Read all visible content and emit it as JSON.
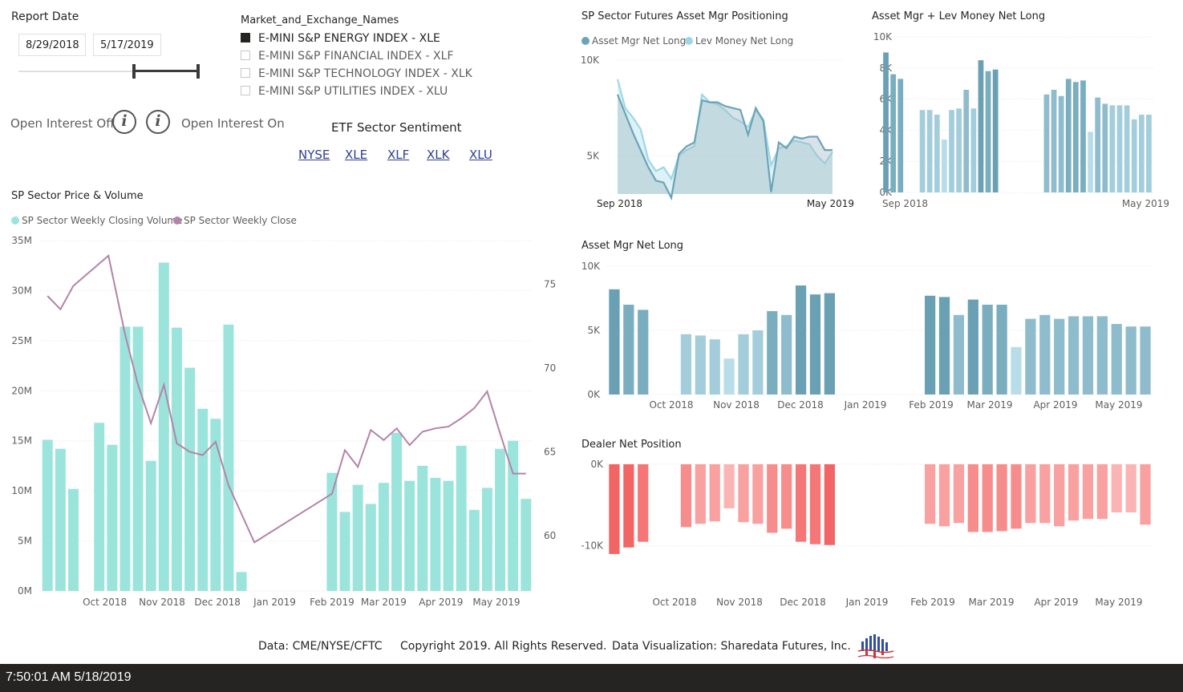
{
  "report_date": {
    "label": "Report Date",
    "start": "8/29/2018",
    "end": "5/17/2019"
  },
  "market_filter": {
    "title": "Market_and_Exchange_Names",
    "items": [
      {
        "label": "E-MINI S&P ENERGY INDEX - XLE",
        "selected": true
      },
      {
        "label": "E-MINI S&P FINANCIAL INDEX - XLF",
        "selected": false
      },
      {
        "label": "E-MINI S&P TECHNOLOGY INDEX - XLK",
        "selected": false
      },
      {
        "label": "E-MINI S&P UTILITIES INDEX - XLU",
        "selected": false
      }
    ]
  },
  "open_interest": {
    "off_label": "Open Interest Off",
    "on_label": "Open Interest On",
    "icon_glyph": "i"
  },
  "etf": {
    "title": "ETF Sector Sentiment",
    "links": [
      "NYSE",
      "XLE",
      "XLF",
      "XLK",
      "XLU"
    ]
  },
  "footer": {
    "source": "Data: CME/NYSE/CFTC",
    "copyright": "Copyright 2019. All Rights Reserved.",
    "credit": "Data Visualization: Sharedata Futures, Inc."
  },
  "status_bar": {
    "timestamp": "7:50:01 AM 5/18/2019"
  },
  "colors": {
    "volume": "#9be4dc",
    "close": "#b383a8",
    "asset_mgr": "#6aa4b8",
    "lev_money": "#9dd7e6",
    "dealer": "#f77a7a"
  },
  "chart_data": [
    {
      "id": "price_volume",
      "type": "bar",
      "title": "SP Sector Price & Volume",
      "legend": [
        "SP Sector Weekly Closing Volume",
        "SP Sector Weekly Close"
      ],
      "x_ticks": [
        "Oct 2018",
        "Nov 2018",
        "Dec 2018",
        "Jan 2019",
        "Feb 2019",
        "Mar 2019",
        "Apr 2019",
        "May 2019"
      ],
      "y_ticks": [
        "0M",
        "5M",
        "10M",
        "15M",
        "20M",
        "25M",
        "30M",
        "35M"
      ],
      "y_right_ticks": [
        "60",
        "65",
        "70",
        "75"
      ],
      "ylim": [
        0,
        35000000
      ],
      "y_right_lim": [
        56.7,
        77.6
      ],
      "series": [
        {
          "name": "SP Sector Weekly Closing Volume",
          "type": "bar",
          "x": [
            "8/31/2018",
            "9/7/2018",
            "9/14/2018",
            "9/28/2018",
            "10/5/2018",
            "10/12/2018",
            "10/19/2018",
            "10/26/2018",
            "11/2/2018",
            "11/9/2018",
            "11/16/2018",
            "11/23/2018",
            "11/30/2018",
            "12/7/2018",
            "12/14/2018",
            "2/1/2019",
            "2/8/2019",
            "2/15/2019",
            "2/22/2019",
            "3/1/2019",
            "3/8/2019",
            "3/15/2019",
            "3/22/2019",
            "3/29/2019",
            "4/5/2019",
            "4/12/2019",
            "4/19/2019",
            "4/26/2019",
            "5/3/2019",
            "5/10/2019",
            "5/17/2019"
          ],
          "values": [
            15100000,
            14200000,
            10200000,
            16800000,
            14600000,
            26400000,
            26400000,
            13000000,
            32800000,
            26300000,
            22300000,
            18200000,
            17200000,
            26600000,
            1900000,
            11800000,
            7900000,
            10600000,
            8700000,
            10800000,
            15800000,
            11000000,
            12500000,
            11300000,
            11000000,
            14500000,
            8100000,
            10300000,
            14200000,
            15000000,
            9200000
          ]
        },
        {
          "name": "SP Sector Weekly Close",
          "type": "line",
          "x": [
            "8/31/2018",
            "9/7/2018",
            "9/14/2018",
            "10/3/2018",
            "10/12/2018",
            "10/19/2018",
            "10/26/2018",
            "11/2/2018",
            "11/9/2018",
            "11/16/2018",
            "11/23/2018",
            "11/30/2018",
            "12/7/2018",
            "12/21/2018",
            "2/1/2019",
            "2/8/2019",
            "2/15/2019",
            "2/22/2019",
            "3/1/2019",
            "3/8/2019",
            "3/15/2019",
            "3/22/2019",
            "3/29/2019",
            "4/5/2019",
            "4/12/2019",
            "4/19/2019",
            "4/26/2019",
            "5/3/2019",
            "5/10/2019",
            "5/17/2019"
          ],
          "values": [
            74.3,
            73.5,
            74.9,
            76.7,
            72.0,
            69.0,
            66.7,
            69.0,
            65.5,
            65.0,
            64.8,
            65.6,
            63.0,
            59.6,
            62.5,
            65.1,
            64.1,
            66.3,
            65.7,
            66.4,
            65.4,
            66.2,
            66.4,
            66.5,
            67.0,
            67.6,
            68.6,
            66.1,
            63.7,
            63.7
          ]
        }
      ]
    },
    {
      "id": "positioning",
      "type": "area",
      "title": "SP Sector Futures Asset Mgr Positioning",
      "legend": [
        "Asset Mgr Net Long",
        "Lev Money Net Long"
      ],
      "x_ticks": [
        "Sep 2018",
        "May 2019"
      ],
      "y_ticks": [
        "5K",
        "10K"
      ],
      "ylim": [
        3000,
        10000
      ],
      "series": [
        {
          "name": "Asset Mgr Net Long",
          "values": [
            8200,
            7200,
            6200,
            5300,
            4400,
            3700,
            3600,
            2800,
            5100,
            5500,
            5700,
            7900,
            7800,
            7800,
            7600,
            7500,
            7400,
            6100,
            7500,
            6800,
            3100,
            5700,
            5400,
            6000,
            5900,
            6000,
            6000,
            5300,
            5300
          ]
        },
        {
          "name": "Lev Money Net Long",
          "values": [
            9000,
            7500,
            7000,
            6400,
            4800,
            4200,
            4400,
            3800,
            5000,
            5300,
            5500,
            8200,
            7800,
            7700,
            7400,
            7000,
            6800,
            6500,
            7400,
            6900,
            4500,
            5400,
            5500,
            5800,
            5700,
            5600,
            5000,
            4600,
            5200
          ]
        }
      ]
    },
    {
      "id": "am_plus_lev",
      "type": "bar",
      "title": "Asset Mgr + Lev Money Net Long",
      "x_ticks": [
        "Sep 2018",
        "May 2019"
      ],
      "y_ticks": [
        "0K",
        "2K",
        "4K",
        "6K",
        "8K",
        "10K"
      ],
      "ylim": [
        0,
        10000
      ],
      "values": [
        9000,
        7600,
        7300,
        0,
        0,
        5300,
        5300,
        5000,
        3400,
        5300,
        5400,
        6600,
        5400,
        8500,
        7800,
        7900,
        0,
        0,
        0,
        0,
        0,
        0,
        6300,
        6600,
        6200,
        7300,
        7100,
        7200,
        3900,
        6100,
        5700,
        5600,
        5600,
        5600,
        4700,
        5000,
        5000
      ]
    },
    {
      "id": "asset_mgr_net_long",
      "type": "bar",
      "title": "Asset Mgr Net Long",
      "x_ticks": [
        "Oct 2018",
        "Nov 2018",
        "Dec 2018",
        "Jan 2019",
        "Feb 2019",
        "Mar 2019",
        "Apr 2019",
        "May 2019"
      ],
      "y_ticks": [
        "0K",
        "5K",
        "10K"
      ],
      "ylim": [
        0,
        10000
      ],
      "values": [
        8200,
        7000,
        6600,
        0,
        0,
        4700,
        4600,
        4300,
        2800,
        4700,
        5000,
        6500,
        6200,
        8500,
        7800,
        7900,
        0,
        0,
        0,
        0,
        0,
        0,
        7700,
        7600,
        6200,
        7400,
        7000,
        7000,
        3700,
        5900,
        6200,
        5900,
        6100,
        6100,
        6100,
        5500,
        5300,
        5300
      ]
    },
    {
      "id": "dealer_net_position",
      "type": "bar",
      "title": "Dealer Net Position",
      "x_ticks": [
        "Oct 2018",
        "Nov 2018",
        "Dec 2018",
        "Jan 2019",
        "Feb 2019",
        "Mar 2019",
        "Apr 2019",
        "May 2019"
      ],
      "y_ticks": [
        "0K",
        "-10K"
      ],
      "ylim": [
        -11500,
        0
      ],
      "values": [
        -11000,
        -10200,
        -9500,
        0,
        0,
        -7700,
        -7300,
        -7000,
        -5400,
        -7100,
        -7300,
        -8400,
        -7900,
        -9500,
        -9800,
        -9900,
        0,
        0,
        0,
        0,
        0,
        0,
        -7300,
        -7600,
        -7200,
        -8300,
        -8300,
        -8200,
        -7900,
        -7200,
        -7200,
        -7600,
        -6900,
        -6700,
        -6700,
        -5900,
        -5900,
        -7400
      ]
    }
  ]
}
